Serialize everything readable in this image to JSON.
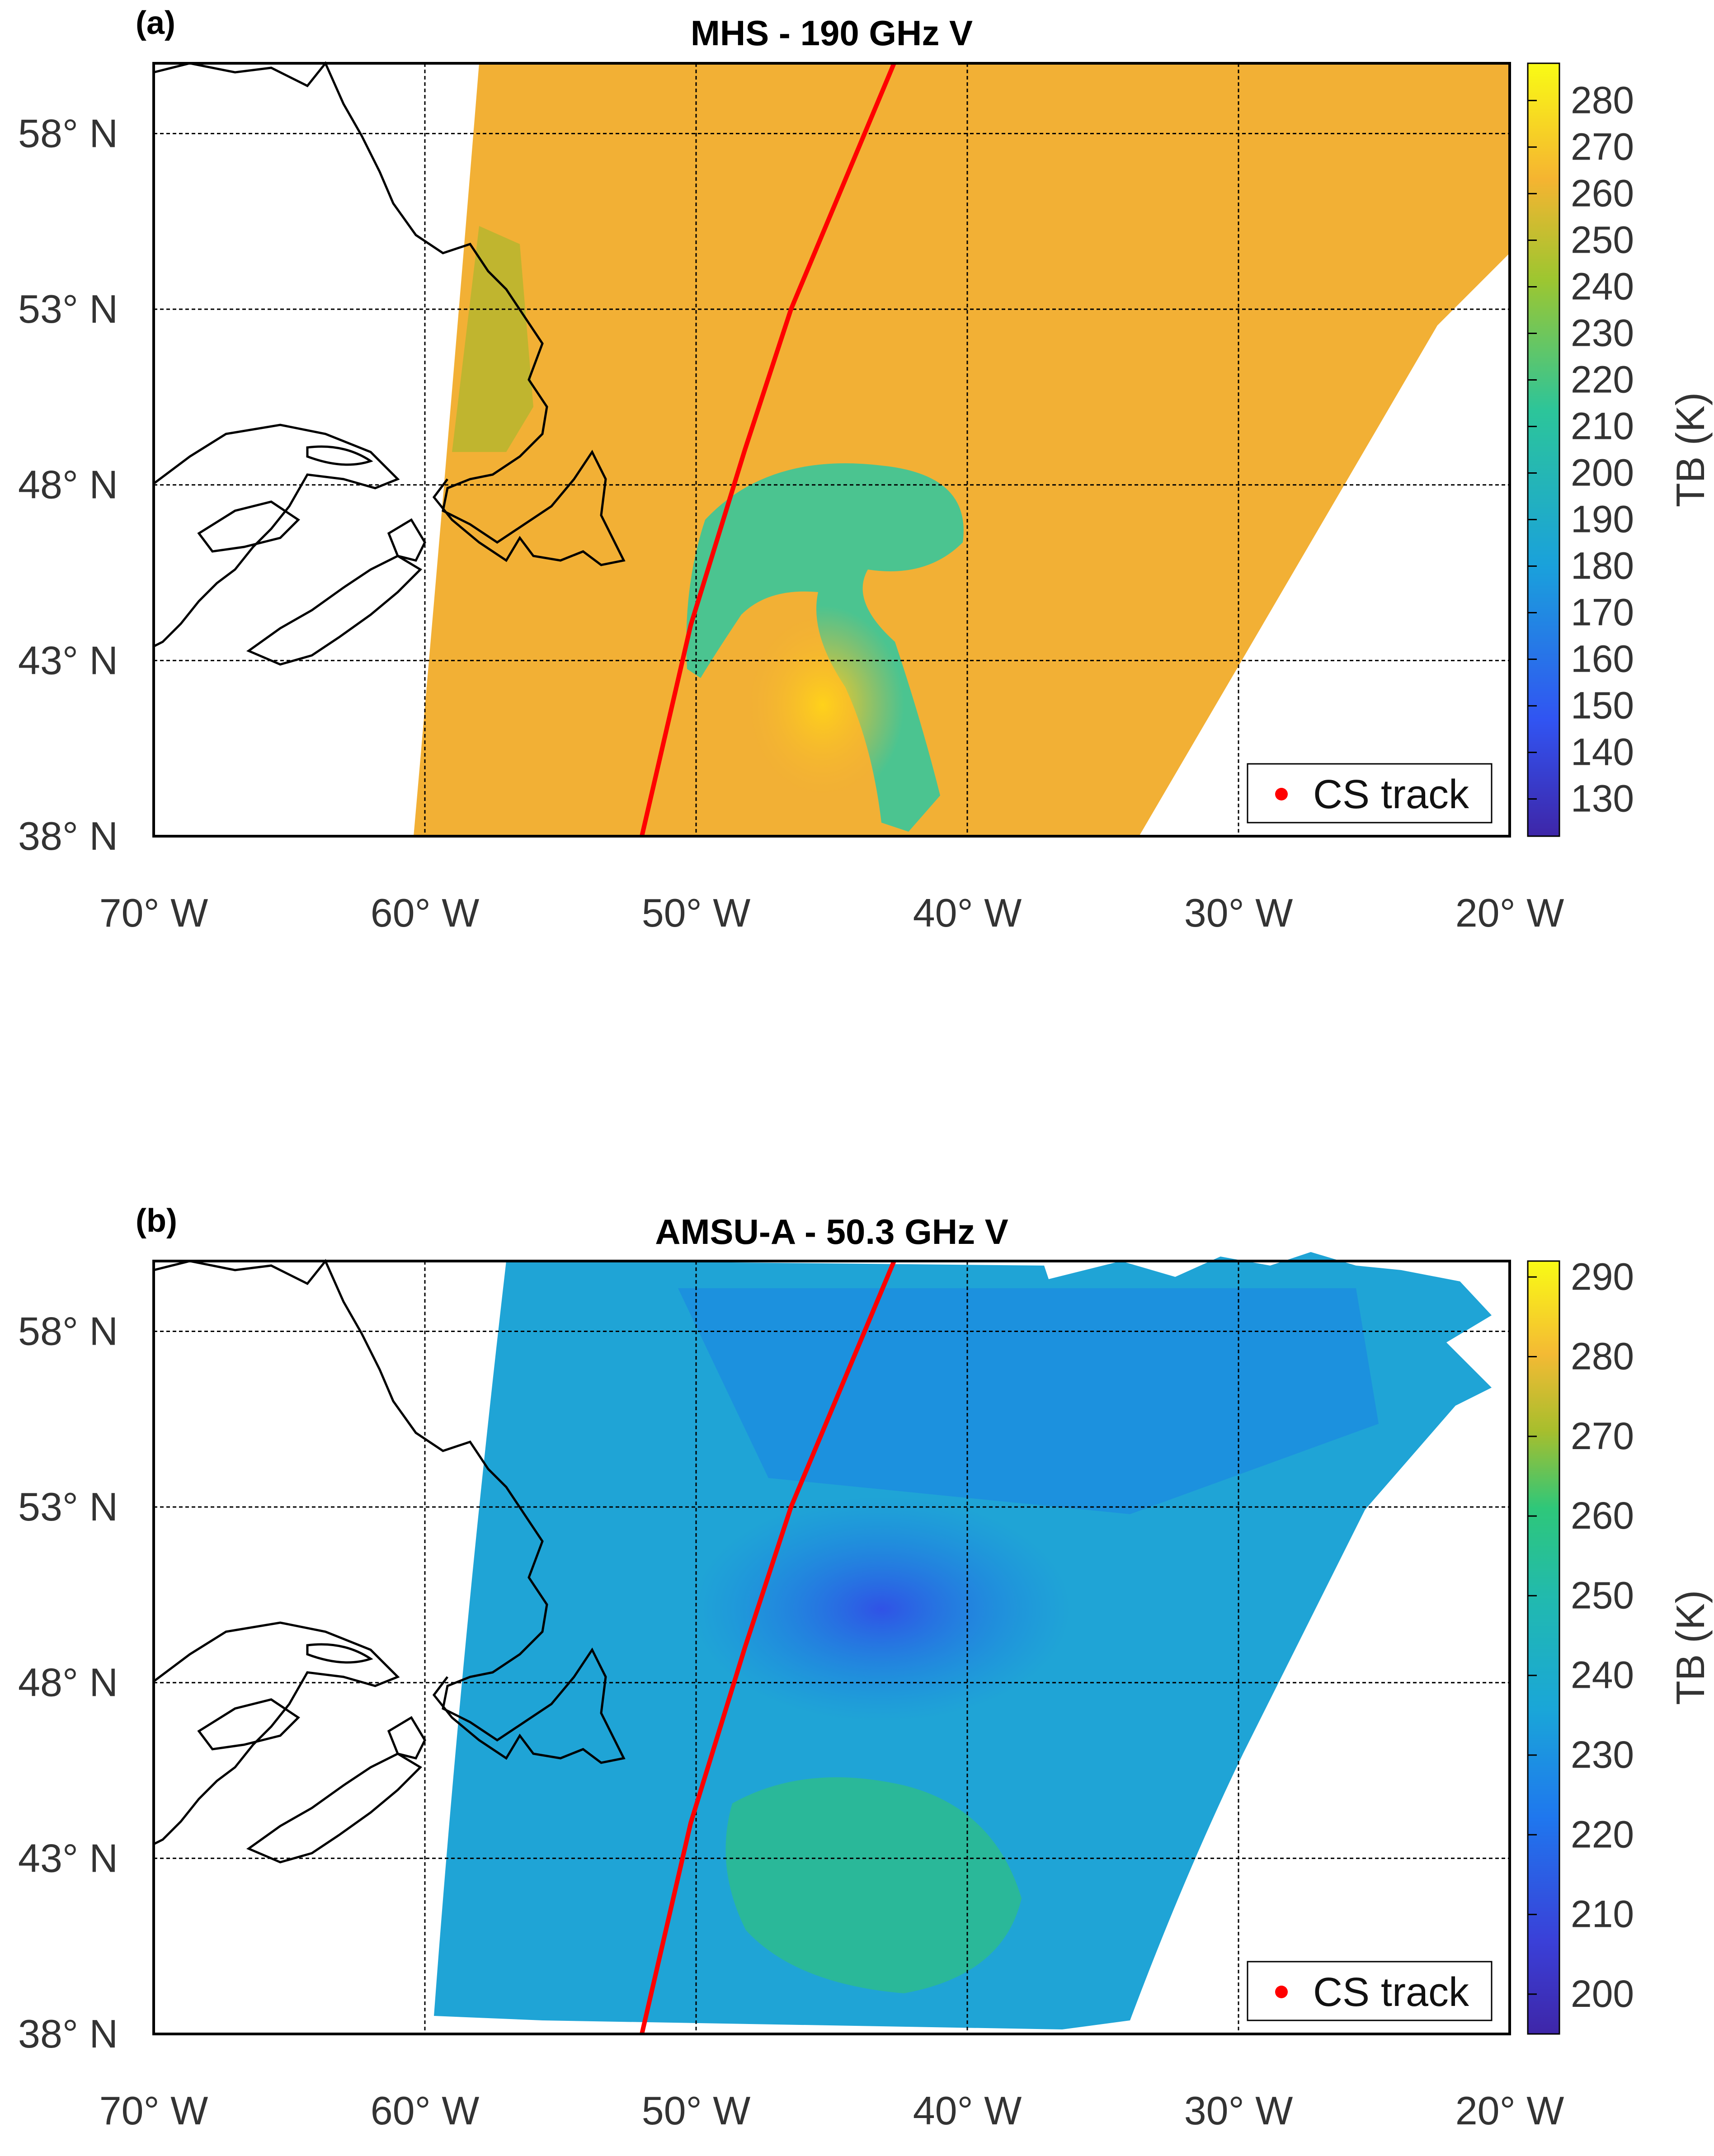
{
  "panels": [
    {
      "letter": "(a)",
      "title": "MHS - 190 GHz V",
      "colorbar": {
        "label": "TB (K)",
        "min": 122,
        "max": 288,
        "ticks": [
          "130",
          "140",
          "150",
          "160",
          "170",
          "180",
          "190",
          "200",
          "210",
          "220",
          "230",
          "240",
          "250",
          "260",
          "270",
          "280"
        ]
      },
      "legend": {
        "label": "CS track",
        "marker_color": "#ff0000"
      },
      "swath_color": "#f2b035",
      "cloud_color": "#2ec8a0"
    },
    {
      "letter": "(b)",
      "title": "AMSU-A - 50.3 GHz V",
      "colorbar": {
        "label": "TB (K)",
        "min": 195,
        "max": 292,
        "ticks": [
          "200",
          "210",
          "220",
          "230",
          "240",
          "250",
          "260",
          "270",
          "280",
          "290"
        ]
      },
      "legend": {
        "label": "CS track",
        "marker_color": "#ff0000"
      },
      "swath_color": "#1fa4d6",
      "cloud_color": "#2fbf84"
    }
  ],
  "map": {
    "lat_ticks": [
      "38° N",
      "43° N",
      "48° N",
      "53° N",
      "58° N"
    ],
    "lon_ticks": [
      "70° W",
      "60° W",
      "50° W",
      "40° W",
      "30° W",
      "20° W"
    ],
    "lat_range": [
      38,
      60
    ],
    "lon_range": [
      -70,
      -20
    ]
  },
  "cs_track": {
    "color": "#ff0000",
    "points": [
      [
        -52.0,
        38.0
      ],
      [
        -50.2,
        44.0
      ],
      [
        -48.2,
        49.0
      ],
      [
        -46.5,
        53.0
      ],
      [
        -42.7,
        60.0
      ]
    ]
  }
}
